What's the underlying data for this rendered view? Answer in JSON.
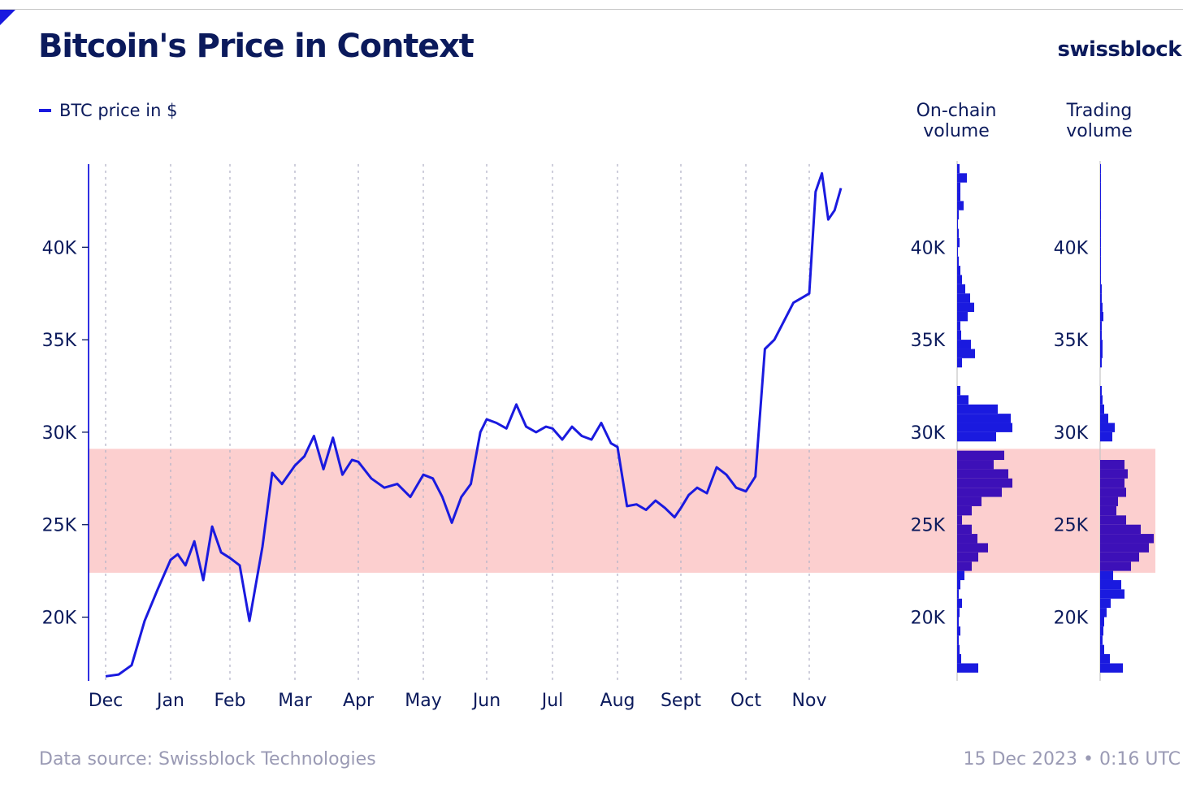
{
  "header": {
    "title": "Bitcoin's Price in Context",
    "brand": "swissblock"
  },
  "footer": {
    "source": "Data source: Swissblock Technologies",
    "timestamp": "15 Dec 2023 • 0:16 UTC"
  },
  "colors": {
    "line": "#1a1adf",
    "band": "#fccfcf",
    "band_overlap": "#3d10b8",
    "grid": "#b4b4c8",
    "text": "#0b1a5c"
  },
  "chart_data": [
    {
      "type": "line",
      "legend": "BTC price in $",
      "x_tick_labels": [
        "Dec",
        "Jan",
        "Feb",
        "Mar",
        "Apr",
        "May",
        "Jun",
        "Jul",
        "Aug",
        "Sept",
        "Oct",
        "Nov"
      ],
      "y_tick_labels": [
        "20K",
        "25K",
        "30K",
        "35K",
        "40K"
      ],
      "y_ticks": [
        20000,
        25000,
        30000,
        35000,
        40000
      ],
      "ylim": [
        16700,
        44500
      ],
      "highlight_band": [
        22400,
        29100
      ],
      "grid": "vertical dotted at month starts",
      "series": [
        {
          "x": [
            0,
            0.2,
            0.4,
            0.6,
            0.8,
            1.0,
            1.12,
            1.25,
            1.4,
            1.55,
            1.7,
            1.85,
            2.0,
            2.15,
            2.3,
            2.5,
            2.65,
            2.8,
            3.0,
            3.15,
            3.3,
            3.45,
            3.6,
            3.75,
            3.9,
            4.0,
            4.2,
            4.4,
            4.6,
            4.8,
            5.0,
            5.15,
            5.3,
            5.45,
            5.6,
            5.75,
            5.9,
            6.0,
            6.15,
            6.3,
            6.45,
            6.6,
            6.75,
            6.9,
            7.0,
            7.15,
            7.3,
            7.45,
            7.6,
            7.75,
            7.9,
            8.0,
            8.15,
            8.3,
            8.45,
            8.6,
            8.75,
            8.9,
            9.0,
            9.12,
            9.25,
            9.4,
            9.55,
            9.7,
            9.85,
            10.0,
            10.15,
            10.3,
            10.45,
            10.6,
            10.75,
            10.9,
            11.0,
            11.1,
            11.2,
            11.3,
            11.4,
            11.5
          ],
          "y": [
            16800,
            16900,
            17400,
            19800,
            21500,
            23100,
            23400,
            22800,
            24100,
            22000,
            24900,
            23500,
            23200,
            22800,
            19800,
            23800,
            27800,
            27200,
            28200,
            28700,
            29800,
            28000,
            29700,
            27700,
            28500,
            28400,
            27500,
            27000,
            27200,
            26500,
            27700,
            27500,
            26500,
            25100,
            26500,
            27200,
            30000,
            30700,
            30500,
            30200,
            31500,
            30300,
            30000,
            30300,
            30200,
            29600,
            30300,
            29800,
            29600,
            30500,
            29400,
            29200,
            26000,
            26100,
            25800,
            26300,
            25900,
            25400,
            25900,
            26600,
            27000,
            26700,
            28100,
            27700,
            27000,
            26800,
            27600,
            34500,
            35000,
            36000,
            37000,
            37300,
            37500,
            43000,
            44000,
            41500,
            42000,
            43200
          ]
        }
      ]
    },
    {
      "type": "bar",
      "orientation": "horizontal",
      "title": "On-chain volume",
      "y_tick_labels": [
        "20K",
        "25K",
        "30K",
        "35K",
        "40K"
      ],
      "bin_width": 500,
      "bins": [
        17250,
        17750,
        18250,
        18750,
        19250,
        19750,
        20250,
        20750,
        21250,
        21750,
        22250,
        22750,
        23250,
        23750,
        24250,
        24750,
        25250,
        25750,
        26250,
        26750,
        27250,
        27750,
        28250,
        28750,
        29250,
        29750,
        30250,
        30750,
        31250,
        31750,
        32250,
        32750,
        33250,
        33750,
        34250,
        34750,
        35250,
        35750,
        36250,
        36750,
        37250,
        37750,
        38250,
        38750,
        39250,
        39750,
        40250,
        40750,
        41250,
        41750,
        42250,
        42750,
        43250,
        43750,
        44250
      ],
      "values": [
        26,
        5,
        3,
        2,
        4,
        2,
        3,
        6,
        2,
        4,
        9,
        18,
        26,
        38,
        25,
        18,
        6,
        18,
        30,
        55,
        68,
        63,
        45,
        58,
        0,
        48,
        68,
        66,
        50,
        14,
        4,
        0,
        0,
        6,
        22,
        17,
        5,
        4,
        13,
        21,
        16,
        10,
        6,
        4,
        2,
        1,
        3,
        2,
        1,
        2,
        8,
        4,
        4,
        12,
        3
      ]
    },
    {
      "type": "bar",
      "orientation": "horizontal",
      "title": "Trading volume",
      "y_tick_labels": [
        "20K",
        "25K",
        "30K",
        "35K",
        "40K"
      ],
      "bin_width": 500,
      "bins": [
        17250,
        17750,
        18250,
        18750,
        19250,
        19750,
        20250,
        20750,
        21250,
        21750,
        22250,
        22750,
        23250,
        23750,
        24250,
        24750,
        25250,
        25750,
        26250,
        26750,
        27250,
        27750,
        28250,
        28750,
        29250,
        29750,
        30250,
        30750,
        31250,
        31750,
        32250,
        32750,
        33250,
        33750,
        34250,
        34750,
        35250,
        35750,
        36250,
        36750,
        37250,
        37750,
        38250,
        38750,
        39250,
        39750,
        40250,
        40750,
        41250,
        41750,
        42250,
        42750,
        43250,
        43750,
        44250
      ],
      "values": [
        28,
        12,
        5,
        3,
        4,
        5,
        8,
        13,
        30,
        26,
        16,
        38,
        48,
        60,
        66,
        50,
        32,
        20,
        22,
        32,
        30,
        34,
        30,
        0,
        0,
        15,
        18,
        10,
        5,
        3,
        2,
        0,
        0,
        2,
        3,
        3,
        2,
        2,
        4,
        3,
        2,
        2,
        1,
        1,
        1,
        1,
        1,
        1,
        1,
        1,
        1,
        1,
        1,
        1,
        1
      ]
    }
  ]
}
